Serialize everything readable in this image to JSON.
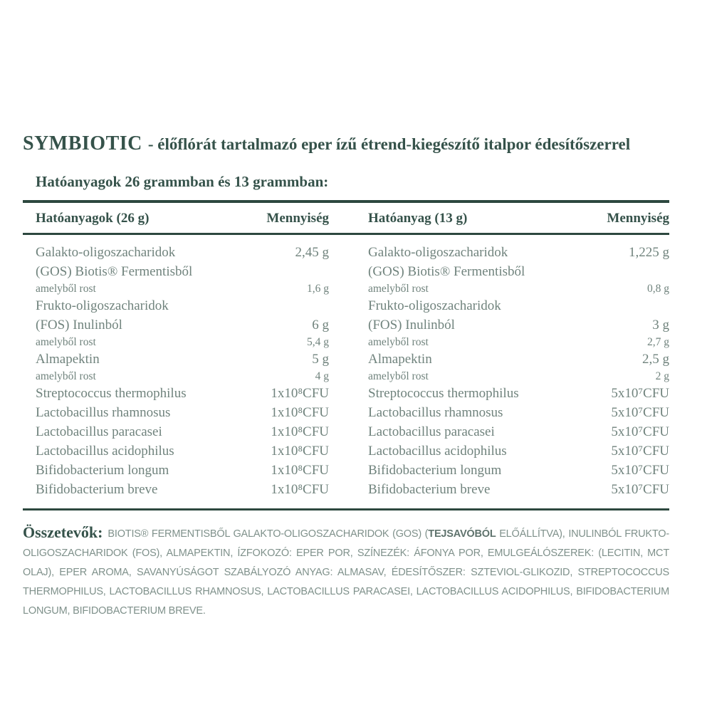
{
  "title": {
    "brand": "SYMBIOTIC",
    "rest": "- élőflórát tartalmazó eper ízű étrend-kiegészítő italpor édesítőszerrel"
  },
  "subtitle": "Hatóanyagok 26 grammban és 13 grammban:",
  "colors": {
    "heading_green": "#35524a",
    "rule_green": "#2d483f",
    "body_text": "#70837d",
    "paragraph_text": "#7f918b"
  },
  "table": {
    "headers": [
      "Hatóanyagok (26 g)",
      "Mennyiség",
      "Hatóanyag (13 g)",
      "Mennyiség"
    ],
    "rows": [
      {
        "name": "Galakto-oligoszacharidok",
        "v26": "2,45 g",
        "v13": "1,225 g",
        "kind": "main"
      },
      {
        "name": "(GOS) Biotis® Fermentisből",
        "v26": "",
        "v13": "",
        "kind": "main"
      },
      {
        "name": "amelyből rost",
        "v26": "1,6 g",
        "v13": "0,8 g",
        "kind": "sub"
      },
      {
        "name": "Frukto-oligoszacharidok",
        "v26": "",
        "v13": "",
        "kind": "main"
      },
      {
        "name": "(FOS) Inulinból",
        "v26": "6 g",
        "v13": "3 g",
        "kind": "main"
      },
      {
        "name": "amelyből rost",
        "v26": "5,4 g",
        "v13": "2,7 g",
        "kind": "sub"
      },
      {
        "name": "Almapektin",
        "v26": "5 g",
        "v13": "2,5 g",
        "kind": "main"
      },
      {
        "name": "amelyből rost",
        "v26": "4 g",
        "v13": "2 g",
        "kind": "sub"
      },
      {
        "name": "Streptococcus thermophilus",
        "v26": "1x10⁸CFU",
        "v13": "5x10⁷CFU",
        "kind": "main"
      },
      {
        "name": "Lactobacillus rhamnosus",
        "v26": "1x10⁸CFU",
        "v13": "5x10⁷CFU",
        "kind": "main"
      },
      {
        "name": "Lactobacillus paracasei",
        "v26": "1x10⁸CFU",
        "v13": "5x10⁷CFU",
        "kind": "main"
      },
      {
        "name": "Lactobacillus acidophilus",
        "v26": "1x10⁸CFU",
        "v13": "5x10⁷CFU",
        "kind": "main"
      },
      {
        "name": "Bifidobacterium longum",
        "v26": "1x10⁸CFU",
        "v13": "5x10⁷CFU",
        "kind": "main"
      },
      {
        "name": "Bifidobacterium breve",
        "v26": "1x10⁸CFU",
        "v13": "5x10⁷CFU",
        "kind": "main"
      }
    ]
  },
  "ingredients": {
    "label": "Összetevők:",
    "part1": "BIOTIS® FERMENTISBŐL GALAKTO-OLIGOSZACHARIDOK (GOS) (",
    "allergen": "TEJSAVÓBÓL",
    "part2": " ELŐÁLLÍTVA), INULINBÓL FRUKTO-OLIGOSZACHARIDOK (FOS), ALMAPEKTIN, ÍZFOKOZÓ: EPER POR, SZÍNEZÉK: ÁFONYA POR, EMULGEÁLÓSZEREK: (LECITIN, MCT OLAJ), EPER AROMA, SAVANYÚSÁGOT SZABÁLYOZÓ ANYAG: ALMASAV, ÉDESÍTŐSZER: SZTEVIOL-GLIKOZID, STREPTOCOCCUS THERMOPHILUS, LACTOBACILLUS RHAMNOSUS, LACTOBACILLUS PARACASEI, LACTOBACILLUS ACIDOPHILUS, BIFIDOBACTERIUM LONGUM, BIFIDOBACTERIUM BREVE."
  }
}
